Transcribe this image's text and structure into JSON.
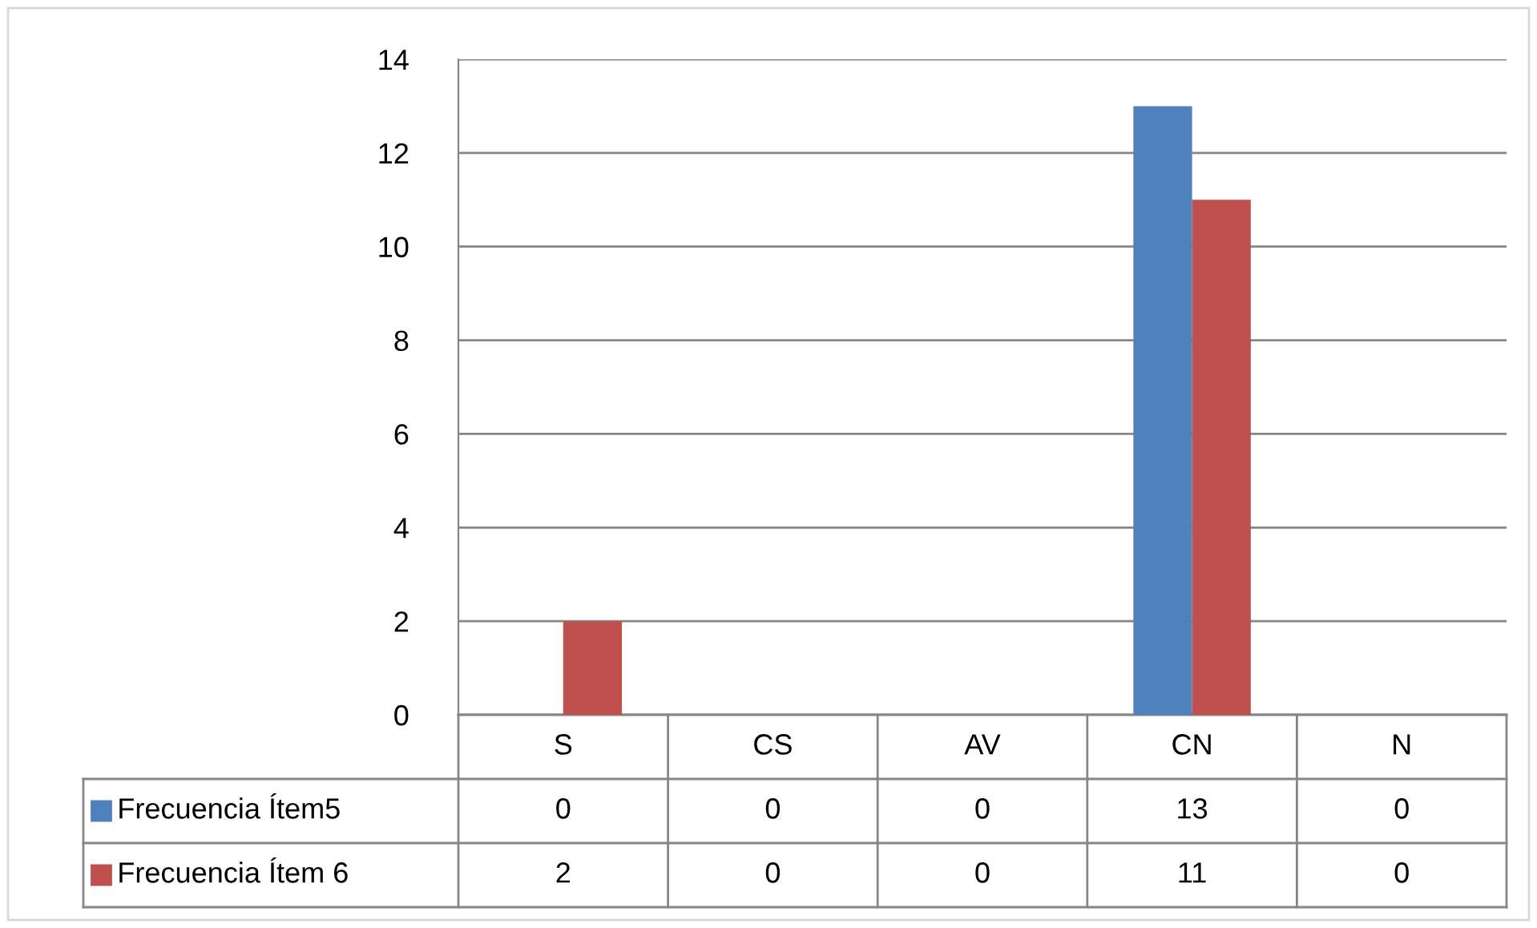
{
  "chart_data": {
    "type": "bar",
    "categories": [
      "S",
      "CS",
      "AV",
      "CN",
      "N"
    ],
    "series": [
      {
        "name": "Frecuencia Ítem5",
        "color": "#4f81bd",
        "values": [
          0,
          0,
          0,
          13,
          0
        ]
      },
      {
        "name": "Frecuencia Ítem 6",
        "color": "#c0504d",
        "values": [
          2,
          0,
          0,
          11,
          0
        ]
      }
    ],
    "ylim": [
      0,
      14
    ],
    "yticks": [
      0,
      2,
      4,
      6,
      8,
      10,
      12,
      14
    ],
    "grid": "y",
    "legend": "bottom left",
    "data_labels": true
  }
}
